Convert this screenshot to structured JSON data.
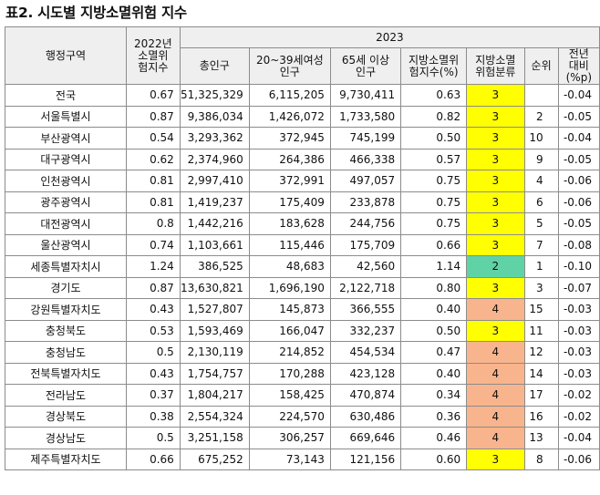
{
  "title": "표2. 시도별 지방소멸위험 지수",
  "header": {
    "region": "행정구역",
    "index2022": "2022년 소멸위험지수",
    "year2023": "2023",
    "total_pop": "총인구",
    "women_20_39": "20~39세여성 인구",
    "over_65": "65세 이상 인구",
    "index2023": "지방소멸위험지수(%)",
    "classification": "지방소멸 위험분류",
    "rank": "순위",
    "change": "전년대비(%p)"
  },
  "colors": {
    "class_2": "#5fd3a6",
    "class_3": "#ffff00",
    "class_4": "#f8b48c",
    "header_bg": "#efefef"
  },
  "rows": [
    {
      "region": "전국",
      "i22": "0.67",
      "pop": "51,325,329",
      "w": "6,115,205",
      "o": "9,730,411",
      "i23": "0.63",
      "cls": "3",
      "rank": "",
      "chg": "-0.04"
    },
    {
      "region": "서울특별시",
      "i22": "0.87",
      "pop": "9,386,034",
      "w": "1,426,072",
      "o": "1,733,580",
      "i23": "0.82",
      "cls": "3",
      "rank": "2",
      "chg": "-0.05"
    },
    {
      "region": "부산광역시",
      "i22": "0.54",
      "pop": "3,293,362",
      "w": "372,945",
      "o": "745,199",
      "i23": "0.50",
      "cls": "3",
      "rank": "10",
      "chg": "-0.04"
    },
    {
      "region": "대구광역시",
      "i22": "0.62",
      "pop": "2,374,960",
      "w": "264,386",
      "o": "466,338",
      "i23": "0.57",
      "cls": "3",
      "rank": "9",
      "chg": "-0.05"
    },
    {
      "region": "인천광역시",
      "i22": "0.81",
      "pop": "2,997,410",
      "w": "372,991",
      "o": "497,057",
      "i23": "0.75",
      "cls": "3",
      "rank": "4",
      "chg": "-0.06"
    },
    {
      "region": "광주광역시",
      "i22": "0.81",
      "pop": "1,419,237",
      "w": "175,409",
      "o": "233,878",
      "i23": "0.75",
      "cls": "3",
      "rank": "6",
      "chg": "-0.06"
    },
    {
      "region": "대전광역시",
      "i22": "0.8",
      "pop": "1,442,216",
      "w": "183,628",
      "o": "244,756",
      "i23": "0.75",
      "cls": "3",
      "rank": "5",
      "chg": "-0.05"
    },
    {
      "region": "울산광역시",
      "i22": "0.74",
      "pop": "1,103,661",
      "w": "115,446",
      "o": "175,709",
      "i23": "0.66",
      "cls": "3",
      "rank": "7",
      "chg": "-0.08"
    },
    {
      "region": "세종특별자치시",
      "i22": "1.24",
      "pop": "386,525",
      "w": "48,683",
      "o": "42,560",
      "i23": "1.14",
      "cls": "2",
      "rank": "1",
      "chg": "-0.10"
    },
    {
      "region": "경기도",
      "i22": "0.87",
      "pop": "13,630,821",
      "w": "1,696,190",
      "o": "2,122,718",
      "i23": "0.80",
      "cls": "3",
      "rank": "3",
      "chg": "-0.07"
    },
    {
      "region": "강원특별자치도",
      "i22": "0.43",
      "pop": "1,527,807",
      "w": "145,873",
      "o": "366,555",
      "i23": "0.40",
      "cls": "4",
      "rank": "15",
      "chg": "-0.03"
    },
    {
      "region": "충청북도",
      "i22": "0.53",
      "pop": "1,593,469",
      "w": "166,047",
      "o": "332,237",
      "i23": "0.50",
      "cls": "3",
      "rank": "11",
      "chg": "-0.03"
    },
    {
      "region": "충청남도",
      "i22": "0.5",
      "pop": "2,130,119",
      "w": "214,852",
      "o": "454,534",
      "i23": "0.47",
      "cls": "4",
      "rank": "12",
      "chg": "-0.03"
    },
    {
      "region": "전북특별자치도",
      "i22": "0.43",
      "pop": "1,754,757",
      "w": "170,288",
      "o": "423,128",
      "i23": "0.40",
      "cls": "4",
      "rank": "14",
      "chg": "-0.03"
    },
    {
      "region": "전라남도",
      "i22": "0.37",
      "pop": "1,804,217",
      "w": "158,425",
      "o": "470,874",
      "i23": "0.34",
      "cls": "4",
      "rank": "17",
      "chg": "-0.02"
    },
    {
      "region": "경상북도",
      "i22": "0.38",
      "pop": "2,554,324",
      "w": "224,570",
      "o": "630,486",
      "i23": "0.36",
      "cls": "4",
      "rank": "16",
      "chg": "-0.02"
    },
    {
      "region": "경상남도",
      "i22": "0.5",
      "pop": "3,251,158",
      "w": "306,257",
      "o": "669,646",
      "i23": "0.46",
      "cls": "4",
      "rank": "13",
      "chg": "-0.04"
    },
    {
      "region": "제주특별자치도",
      "i22": "0.66",
      "pop": "675,252",
      "w": "73,143",
      "o": "121,156",
      "i23": "0.60",
      "cls": "3",
      "rank": "8",
      "chg": "-0.06"
    }
  ]
}
